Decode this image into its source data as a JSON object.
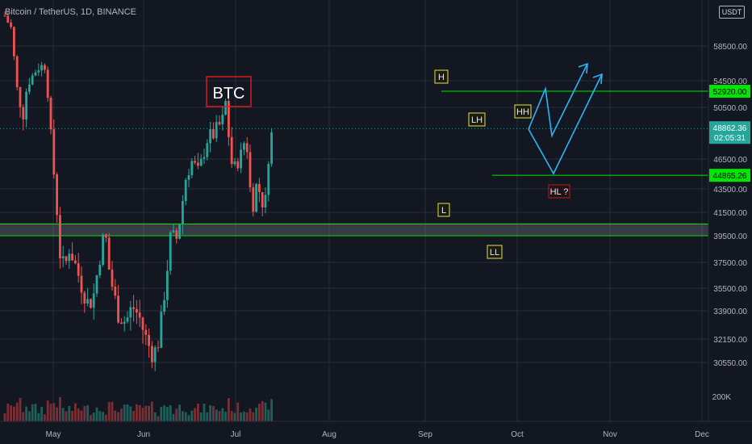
{
  "header": {
    "symbol": "Bitcoin / TetherUS, 1D, BINANCE",
    "currency": "USDT"
  },
  "chart_data": {
    "type": "candlestick",
    "title": "BTC",
    "y_axis": {
      "ticks": [
        "58500.00",
        "54500.00",
        "50500.00",
        "46500.00",
        "43500.00",
        "41500.00",
        "39500.00",
        "37500.00",
        "35500.00",
        "33900.00",
        "32150.00",
        "30550.00"
      ],
      "volume_tick": "200K"
    },
    "x_axis": {
      "ticks": [
        "May",
        "Jun",
        "Jul",
        "Aug",
        "Sep",
        "Oct",
        "Nov",
        "Dec"
      ]
    },
    "price_labels": {
      "resistance": "52920.00",
      "last_price": "48862.36",
      "countdown": "02:05:31",
      "support": "44865.26"
    },
    "zone_range": [
      39500,
      40500
    ],
    "annotations": [
      "H",
      "LH",
      "HH",
      "L",
      "LL",
      "HL ?"
    ],
    "colors": {
      "up": "#26a69a",
      "down": "#ef5350",
      "level": "#00e600",
      "projection": "#29b6f6",
      "box": "#e0161e"
    }
  }
}
